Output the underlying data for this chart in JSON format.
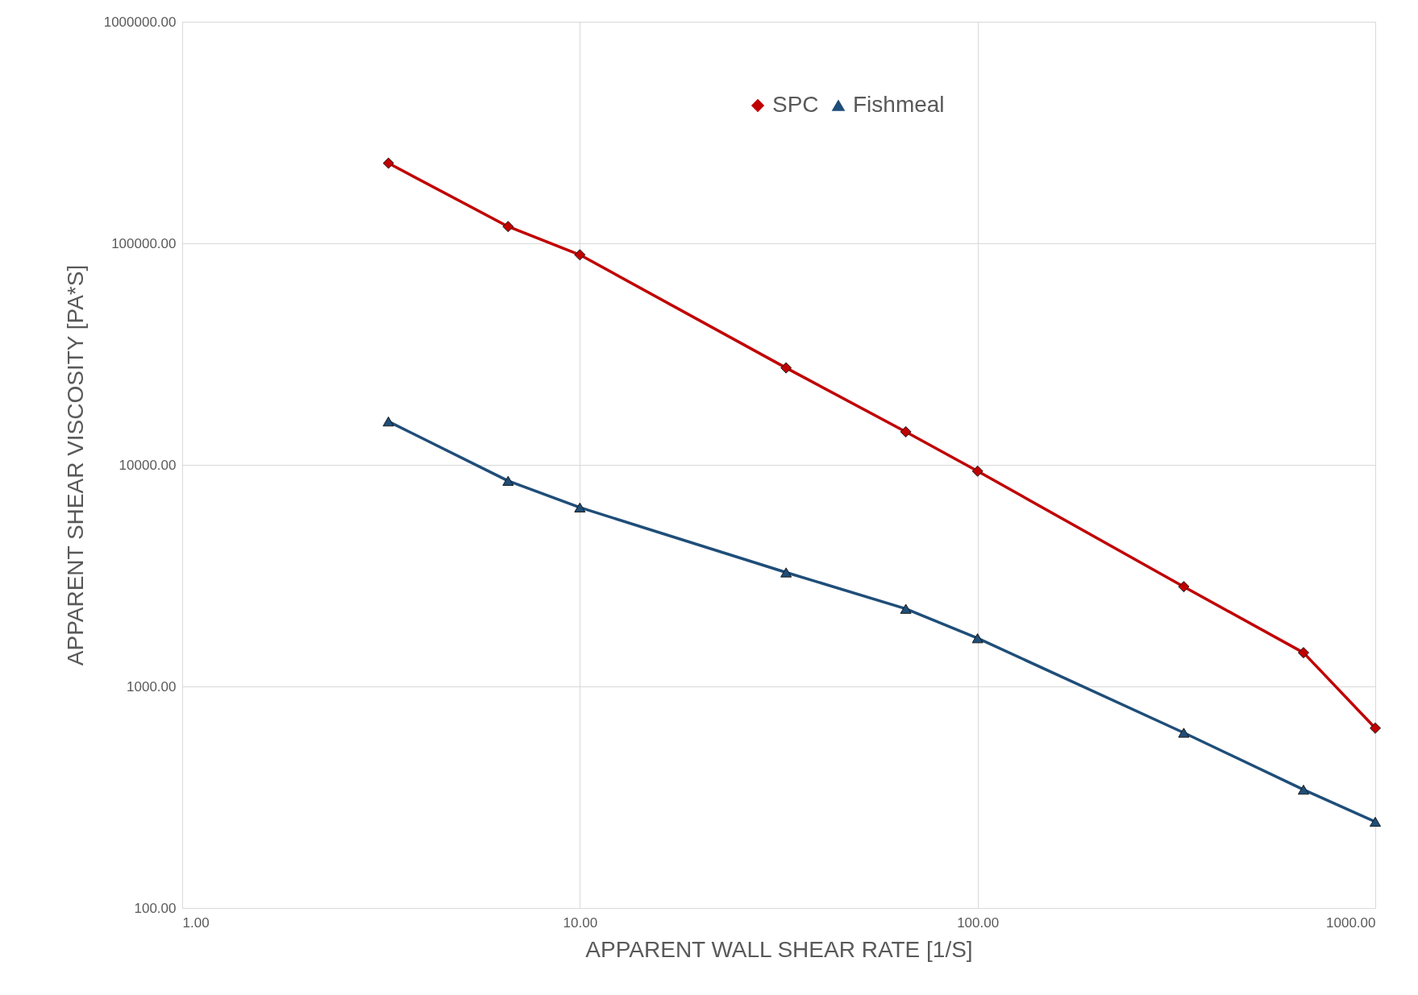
{
  "chart_data": {
    "type": "line",
    "xlabel": "APPARENT WALL SHEAR RATE [1/S]",
    "ylabel": "APPARENT SHEAR VISCOSITY [PA*S]",
    "log": "xy",
    "grid": true,
    "legend": "top",
    "line_style": "solid",
    "x": [
      3.3,
      6.6,
      10,
      33,
      66,
      100,
      330,
      660,
      1000
    ],
    "xlim": [
      1,
      1000
    ],
    "ylim": [
      100,
      1000000
    ],
    "xticks": [
      {
        "value": 1,
        "label": "1.00"
      },
      {
        "value": 10,
        "label": "10.00"
      },
      {
        "value": 100,
        "label": "100.00"
      },
      {
        "value": 1000,
        "label": "1000.00"
      }
    ],
    "yticks": [
      {
        "value": 100,
        "label": "100.00"
      },
      {
        "value": 1000,
        "label": "1000.00"
      },
      {
        "value": 10000,
        "label": "10000.00"
      },
      {
        "value": 100000,
        "label": "100000.00"
      },
      {
        "value": 1000000,
        "label": "1000000.00"
      }
    ],
    "series": [
      {
        "name": "SPC",
        "color": "#c00000",
        "marker": "diamond",
        "values": [
          230000,
          119000,
          88700,
          27400,
          14100,
          9370,
          2820,
          1420,
          648
        ]
      },
      {
        "name": "Fishmeal",
        "color": "#1f4e79",
        "marker": "triangle",
        "values": [
          15700,
          8470,
          6420,
          3270,
          2240,
          1650,
          618,
          342,
          245
        ]
      }
    ]
  }
}
